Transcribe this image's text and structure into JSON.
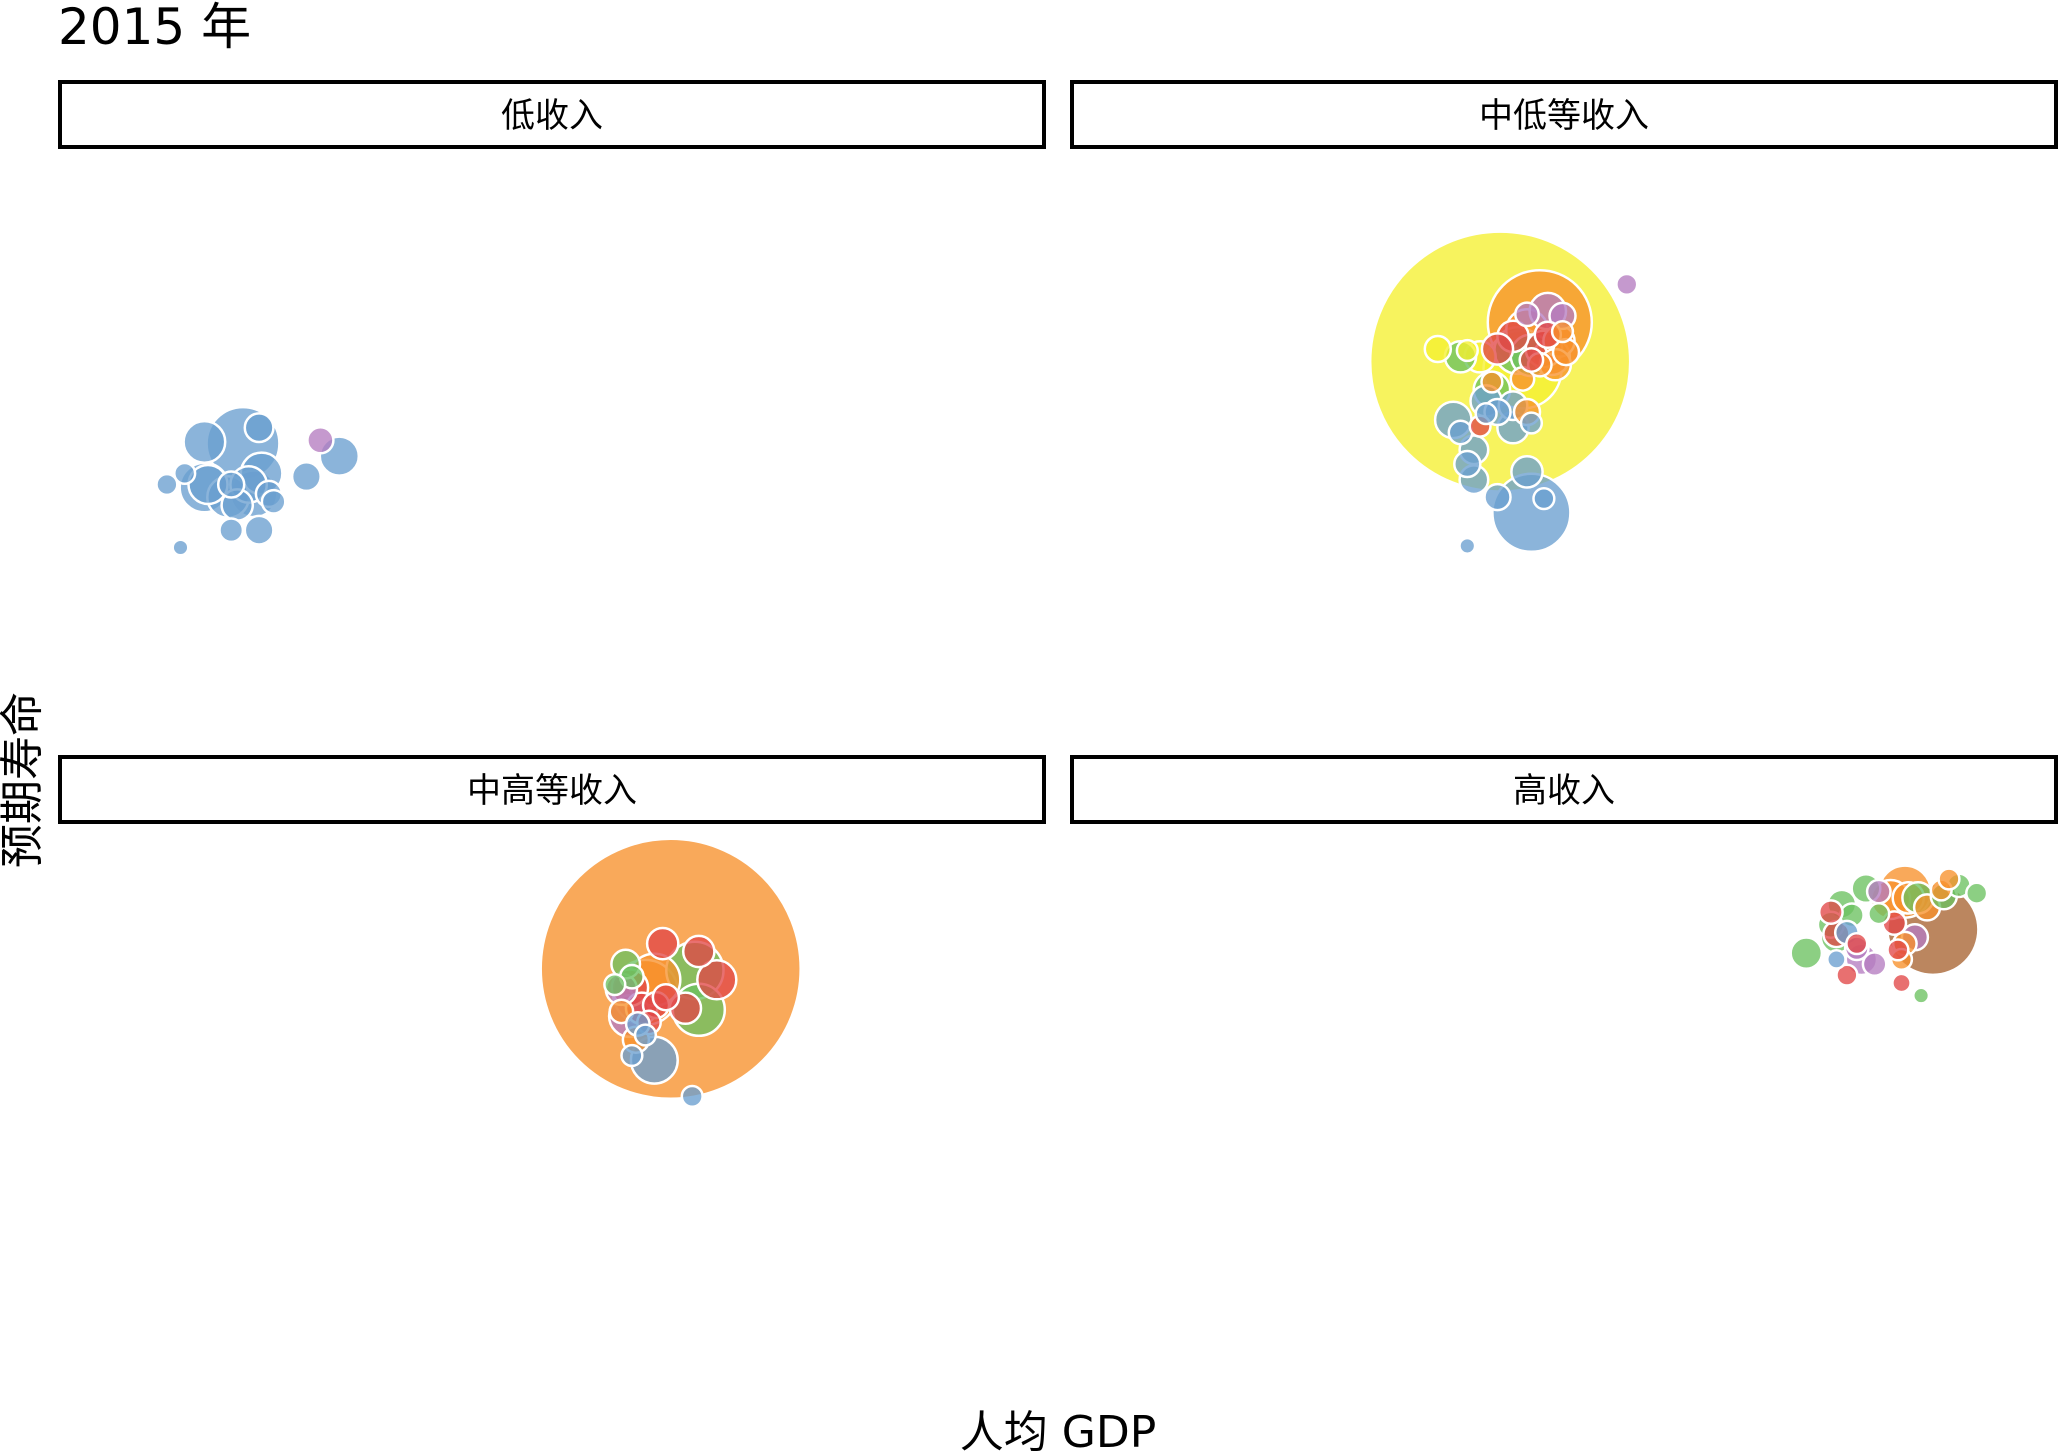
{
  "chart_data": {
    "type": "scatter",
    "title": "2015 年",
    "xlabel": "人均 GDP",
    "ylabel": "预期寿命",
    "x_scale": "log",
    "xlim": [
      150,
      120000
    ],
    "ylim": [
      48,
      85
    ],
    "grid": false,
    "legend": "none",
    "facet_order": [
      "低收入",
      "中低等收入",
      "中高等收入",
      "高收入"
    ],
    "group_colors": {
      "blue": "#6a9fd0",
      "purple": "#b57cc0",
      "green": "#6cc160",
      "red": "#e24848",
      "orange": "#f7912c",
      "yellow": "#f5f031",
      "brown": "#a86432"
    },
    "panels": [
      {
        "name": "低收入",
        "points": [
          {
            "x": 310,
            "y": 63.9,
            "size": 8,
            "color": "blue"
          },
          {
            "x": 350,
            "y": 64.6,
            "size": 8,
            "color": "blue"
          },
          {
            "x": 410,
            "y": 63.9,
            "size": 15,
            "color": "blue"
          },
          {
            "x": 480,
            "y": 63.9,
            "size": 10,
            "color": "blue"
          },
          {
            "x": 540,
            "y": 63.9,
            "size": 14,
            "color": "blue"
          },
          {
            "x": 590,
            "y": 64.6,
            "size": 16,
            "color": "blue"
          },
          {
            "x": 560,
            "y": 63.3,
            "size": 18,
            "color": "blue"
          },
          {
            "x": 620,
            "y": 63.3,
            "size": 10,
            "color": "blue"
          },
          {
            "x": 640,
            "y": 62.8,
            "size": 9,
            "color": "blue"
          },
          {
            "x": 400,
            "y": 63.7,
            "size": 19,
            "color": "blue"
          },
          {
            "x": 470,
            "y": 63.1,
            "size": 16,
            "color": "blue"
          },
          {
            "x": 500,
            "y": 62.6,
            "size": 12,
            "color": "blue"
          },
          {
            "x": 400,
            "y": 66.6,
            "size": 16,
            "color": "blue"
          },
          {
            "x": 520,
            "y": 66.5,
            "size": 28,
            "color": "blue"
          },
          {
            "x": 580,
            "y": 67.5,
            "size": 11,
            "color": "blue"
          },
          {
            "x": 800,
            "y": 64.4,
            "size": 11,
            "color": "blue"
          },
          {
            "x": 1000,
            "y": 65.7,
            "size": 15,
            "color": "blue"
          },
          {
            "x": 480,
            "y": 61.0,
            "size": 9,
            "color": "blue"
          },
          {
            "x": 580,
            "y": 61.0,
            "size": 11,
            "color": "blue"
          },
          {
            "x": 340,
            "y": 59.9,
            "size": 6,
            "color": "blue"
          },
          {
            "x": 880,
            "y": 66.7,
            "size": 10,
            "color": "purple"
          }
        ]
      },
      {
        "name": "中低等收入",
        "points": [
          {
            "x": 2750,
            "y": 71.7,
            "size": 100,
            "color": "yellow"
          },
          {
            "x": 3200,
            "y": 71.2,
            "size": 30,
            "color": "yellow"
          },
          {
            "x": 2400,
            "y": 72.0,
            "size": 12,
            "color": "yellow"
          },
          {
            "x": 2200,
            "y": 72.4,
            "size": 8,
            "color": "yellow"
          },
          {
            "x": 1800,
            "y": 72.5,
            "size": 10,
            "color": "yellow"
          },
          {
            "x": 3800,
            "y": 74.9,
            "size": 14,
            "color": "purple"
          },
          {
            "x": 4200,
            "y": 74.6,
            "size": 10,
            "color": "purple"
          },
          {
            "x": 3300,
            "y": 74.7,
            "size": 9,
            "color": "purple"
          },
          {
            "x": 6500,
            "y": 76.6,
            "size": 8,
            "color": "purple"
          },
          {
            "x": 3600,
            "y": 74.2,
            "size": 40,
            "color": "orange"
          },
          {
            "x": 3300,
            "y": 73.7,
            "size": 16,
            "color": "orange"
          },
          {
            "x": 4100,
            "y": 73.0,
            "size": 12,
            "color": "orange"
          },
          {
            "x": 3900,
            "y": 72.0,
            "size": 14,
            "color": "orange"
          },
          {
            "x": 4300,
            "y": 72.3,
            "size": 10,
            "color": "orange"
          },
          {
            "x": 4000,
            "y": 71.5,
            "size": 12,
            "color": "orange"
          },
          {
            "x": 4200,
            "y": 73.6,
            "size": 8,
            "color": "orange"
          },
          {
            "x": 3200,
            "y": 70.6,
            "size": 9,
            "color": "orange"
          },
          {
            "x": 3300,
            "y": 68.5,
            "size": 10,
            "color": "orange"
          },
          {
            "x": 2600,
            "y": 70.4,
            "size": 8,
            "color": "orange"
          },
          {
            "x": 3600,
            "y": 71.5,
            "size": 9,
            "color": "orange"
          },
          {
            "x": 3000,
            "y": 73.3,
            "size": 12,
            "color": "red"
          },
          {
            "x": 3800,
            "y": 73.4,
            "size": 10,
            "color": "red"
          },
          {
            "x": 3700,
            "y": 72.5,
            "size": 14,
            "color": "red"
          },
          {
            "x": 2700,
            "y": 72.5,
            "size": 12,
            "color": "red"
          },
          {
            "x": 3400,
            "y": 71.8,
            "size": 9,
            "color": "red"
          },
          {
            "x": 2400,
            "y": 67.6,
            "size": 8,
            "color": "red"
          },
          {
            "x": 3100,
            "y": 72.4,
            "size": 18,
            "color": "green"
          },
          {
            "x": 3400,
            "y": 72.1,
            "size": 16,
            "color": "green"
          },
          {
            "x": 2100,
            "y": 72.0,
            "size": 12,
            "color": "green"
          },
          {
            "x": 2600,
            "y": 69.9,
            "size": 14,
            "color": "green"
          },
          {
            "x": 2500,
            "y": 69.2,
            "size": 12,
            "color": "blue"
          },
          {
            "x": 2000,
            "y": 68.0,
            "size": 14,
            "color": "blue"
          },
          {
            "x": 2700,
            "y": 68.5,
            "size": 10,
            "color": "blue"
          },
          {
            "x": 3000,
            "y": 68.9,
            "size": 11,
            "color": "blue"
          },
          {
            "x": 2500,
            "y": 68.4,
            "size": 8,
            "color": "blue"
          },
          {
            "x": 2300,
            "y": 66.1,
            "size": 11,
            "color": "blue"
          },
          {
            "x": 2100,
            "y": 67.2,
            "size": 9,
            "color": "blue"
          },
          {
            "x": 3000,
            "y": 67.5,
            "size": 12,
            "color": "blue"
          },
          {
            "x": 3400,
            "y": 67.8,
            "size": 8,
            "color": "blue"
          },
          {
            "x": 2200,
            "y": 65.2,
            "size": 10,
            "color": "blue"
          },
          {
            "x": 3300,
            "y": 64.7,
            "size": 12,
            "color": "blue"
          },
          {
            "x": 2300,
            "y": 64.2,
            "size": 11,
            "color": "blue"
          },
          {
            "x": 2700,
            "y": 63.1,
            "size": 10,
            "color": "blue"
          },
          {
            "x": 3400,
            "y": 62.1,
            "size": 30,
            "color": "blue"
          },
          {
            "x": 3700,
            "y": 63.0,
            "size": 8,
            "color": "blue"
          },
          {
            "x": 2200,
            "y": 60.0,
            "size": 6,
            "color": "blue"
          }
        ]
      },
      {
        "name": "中高等收入",
        "points": [
          {
            "x": 9500,
            "y": 76.0,
            "size": 100,
            "color": "orange"
          },
          {
            "x": 8500,
            "y": 75.3,
            "size": 20,
            "color": "orange"
          },
          {
            "x": 8000,
            "y": 74.5,
            "size": 25,
            "color": "orange"
          },
          {
            "x": 6800,
            "y": 73.3,
            "size": 9,
            "color": "orange"
          },
          {
            "x": 7500,
            "y": 71.5,
            "size": 10,
            "color": "orange"
          },
          {
            "x": 9000,
            "y": 77.6,
            "size": 12,
            "color": "red"
          },
          {
            "x": 11500,
            "y": 77.1,
            "size": 12,
            "color": "red"
          },
          {
            "x": 13000,
            "y": 75.3,
            "size": 15,
            "color": "red"
          },
          {
            "x": 7200,
            "y": 74.8,
            "size": 14,
            "color": "red"
          },
          {
            "x": 8600,
            "y": 73.7,
            "size": 10,
            "color": "red"
          },
          {
            "x": 9200,
            "y": 74.2,
            "size": 10,
            "color": "red"
          },
          {
            "x": 7800,
            "y": 73.5,
            "size": 12,
            "color": "red"
          },
          {
            "x": 10500,
            "y": 73.5,
            "size": 12,
            "color": "red"
          },
          {
            "x": 8200,
            "y": 72.6,
            "size": 9,
            "color": "red"
          },
          {
            "x": 11200,
            "y": 75.9,
            "size": 22,
            "color": "green"
          },
          {
            "x": 11500,
            "y": 73.4,
            "size": 20,
            "color": "green"
          },
          {
            "x": 7000,
            "y": 76.3,
            "size": 11,
            "color": "green"
          },
          {
            "x": 6500,
            "y": 75.0,
            "size": 8,
            "color": "green"
          },
          {
            "x": 7300,
            "y": 75.5,
            "size": 9,
            "color": "green"
          },
          {
            "x": 7200,
            "y": 73.0,
            "size": 16,
            "color": "purple"
          },
          {
            "x": 6800,
            "y": 74.7,
            "size": 12,
            "color": "purple"
          },
          {
            "x": 7600,
            "y": 72.5,
            "size": 9,
            "color": "blue"
          },
          {
            "x": 8000,
            "y": 71.8,
            "size": 8,
            "color": "blue"
          },
          {
            "x": 7300,
            "y": 70.5,
            "size": 8,
            "color": "blue"
          },
          {
            "x": 8500,
            "y": 70.2,
            "size": 18,
            "color": "blue"
          },
          {
            "x": 11000,
            "y": 67.9,
            "size": 8,
            "color": "blue"
          }
        ]
      },
      {
        "name": "高收入",
        "points": [
          {
            "x": 52000,
            "y": 78.5,
            "size": 35,
            "color": "brown"
          },
          {
            "x": 43000,
            "y": 80.9,
            "size": 20,
            "color": "orange"
          },
          {
            "x": 39000,
            "y": 80.4,
            "size": 15,
            "color": "orange"
          },
          {
            "x": 44000,
            "y": 80.5,
            "size": 12,
            "color": "orange"
          },
          {
            "x": 55000,
            "y": 81.0,
            "size": 8,
            "color": "orange"
          },
          {
            "x": 58000,
            "y": 81.7,
            "size": 8,
            "color": "orange"
          },
          {
            "x": 50000,
            "y": 79.9,
            "size": 10,
            "color": "orange"
          },
          {
            "x": 43000,
            "y": 77.6,
            "size": 9,
            "color": "orange"
          },
          {
            "x": 42000,
            "y": 76.6,
            "size": 8,
            "color": "orange"
          },
          {
            "x": 28000,
            "y": 80.1,
            "size": 11,
            "color": "green"
          },
          {
            "x": 33000,
            "y": 81.1,
            "size": 11,
            "color": "green"
          },
          {
            "x": 47000,
            "y": 80.5,
            "size": 12,
            "color": "green"
          },
          {
            "x": 56000,
            "y": 80.6,
            "size": 10,
            "color": "green"
          },
          {
            "x": 62000,
            "y": 81.3,
            "size": 9,
            "color": "green"
          },
          {
            "x": 70000,
            "y": 80.8,
            "size": 8,
            "color": "green"
          },
          {
            "x": 27000,
            "y": 78.0,
            "size": 12,
            "color": "green"
          },
          {
            "x": 26000,
            "y": 78.8,
            "size": 10,
            "color": "green"
          },
          {
            "x": 30000,
            "y": 79.4,
            "size": 9,
            "color": "green"
          },
          {
            "x": 36000,
            "y": 79.5,
            "size": 8,
            "color": "green"
          },
          {
            "x": 22000,
            "y": 77.0,
            "size": 12,
            "color": "green"
          },
          {
            "x": 48000,
            "y": 74.3,
            "size": 6,
            "color": "green"
          },
          {
            "x": 26000,
            "y": 79.6,
            "size": 9,
            "color": "red"
          },
          {
            "x": 27000,
            "y": 78.2,
            "size": 10,
            "color": "red"
          },
          {
            "x": 31000,
            "y": 77.6,
            "size": 8,
            "color": "red"
          },
          {
            "x": 40000,
            "y": 78.9,
            "size": 9,
            "color": "red"
          },
          {
            "x": 41000,
            "y": 77.2,
            "size": 8,
            "color": "red"
          },
          {
            "x": 29000,
            "y": 75.6,
            "size": 8,
            "color": "red"
          },
          {
            "x": 42000,
            "y": 75.1,
            "size": 7,
            "color": "red"
          },
          {
            "x": 29000,
            "y": 78.3,
            "size": 9,
            "color": "blue"
          },
          {
            "x": 27000,
            "y": 76.6,
            "size": 7,
            "color": "blue"
          },
          {
            "x": 35000,
            "y": 76.3,
            "size": 9,
            "color": "purple"
          },
          {
            "x": 31000,
            "y": 77.3,
            "size": 9,
            "color": "purple"
          },
          {
            "x": 32000,
            "y": 76.6,
            "size": 12,
            "color": "purple"
          },
          {
            "x": 36000,
            "y": 80.9,
            "size": 9,
            "color": "purple"
          },
          {
            "x": 46000,
            "y": 78.0,
            "size": 10,
            "color": "purple"
          }
        ]
      }
    ]
  }
}
